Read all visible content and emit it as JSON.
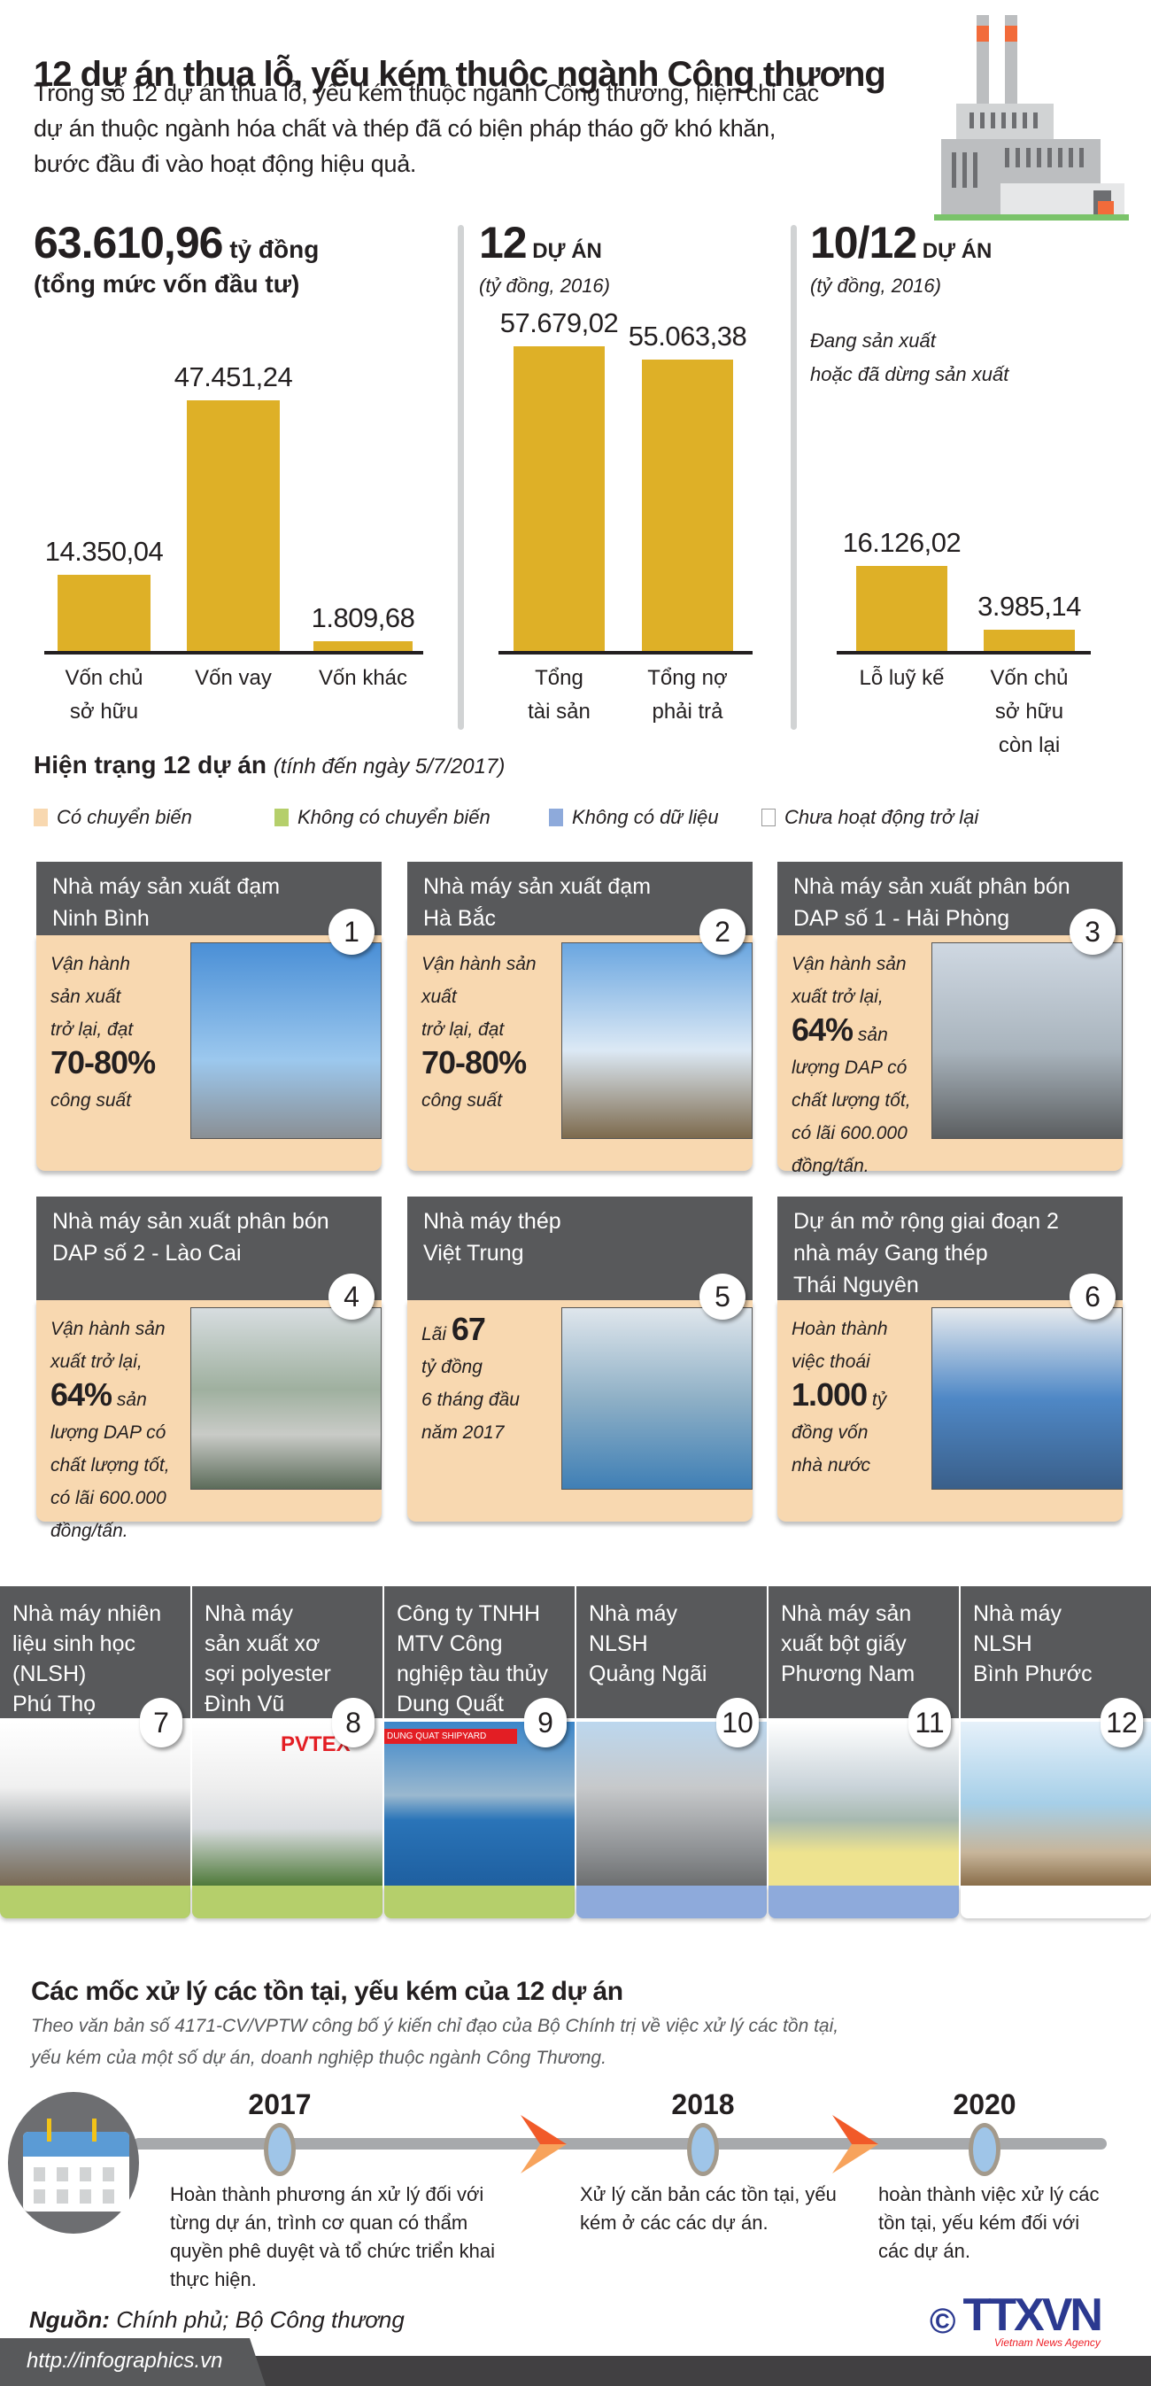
{
  "header": {
    "title": "12 dự án thua lỗ, yếu kém thuộc ngành Công thương",
    "intro": [
      "Trong số 12 dự án thua lỗ, yếu kém thuộc ngành Công thương, hiện chỉ các",
      "dự án thuộc ngành hóa chất và thép đã có biện pháp tháo gỡ khó khăn,",
      "bước đầu đi vào hoạt động hiệu quả."
    ]
  },
  "chart_data": [
    {
      "type": "bar",
      "title": "63.610,96",
      "title_unit": "tỷ đồng",
      "subtitle": "(tổng mức vốn đầu tư)",
      "categories": [
        "Vốn chủ sở hữu",
        "Vốn vay",
        "Vốn khác"
      ],
      "labels": [
        "14.350,04",
        "47.451,24",
        "1.809,68"
      ],
      "values": [
        14350.04,
        47451.24,
        1809.68
      ]
    },
    {
      "type": "bar",
      "title": "12",
      "title_unit": "DỰ ÁN",
      "subtitle": "(tỷ đồng, 2016)",
      "categories": [
        "Tổng tài sản",
        "Tổng nợ phải trả"
      ],
      "labels": [
        "57.679,02",
        "55.063,38"
      ],
      "values": [
        57679.02,
        55063.38
      ]
    },
    {
      "type": "bar",
      "title": "10/12",
      "title_unit": "DỰ ÁN",
      "subtitle": "(tỷ đồng, 2016)",
      "note": [
        "Đang sản xuất",
        "hoặc đã dừng sản xuất"
      ],
      "categories": [
        "Lỗ luỹ kế",
        "Vốn chủ sở hữu còn lại"
      ],
      "labels": [
        "16.126,02",
        "3.985,14"
      ],
      "values": [
        16126.02,
        3985.14
      ]
    }
  ],
  "status": {
    "heading": "Hiện trạng 12 dự án",
    "date": "(tính đến ngày 5/7/2017)",
    "legend": [
      {
        "label": "Có chuyển biến",
        "color": "#f8d8b0"
      },
      {
        "label": "Không có chuyển biến",
        "color": "#b5cf6b"
      },
      {
        "label": "Không có dữ liệu",
        "color": "#8eaadb"
      },
      {
        "label": "Chưa hoạt động trở lại",
        "color": "#ffffff"
      }
    ],
    "cards": [
      {
        "num": "1",
        "name": [
          "Nhà máy sản xuất đạm",
          "Ninh Bình"
        ],
        "body": [
          [
            [
              "Vận hành",
              0
            ]
          ],
          [
            [
              "sản xuất",
              0
            ]
          ],
          [
            [
              "trở lại, đạt",
              0
            ]
          ],
          [
            [
              "70-80%",
              1
            ]
          ],
          [
            [
              "công suất",
              0
            ]
          ]
        ]
      },
      {
        "num": "2",
        "name": [
          "Nhà máy sản xuất đạm",
          "Hà Bắc"
        ],
        "body": [
          [
            [
              "Vận hành sản",
              0
            ]
          ],
          [
            [
              "xuất",
              0
            ]
          ],
          [
            [
              "trở lại, đạt",
              0
            ]
          ],
          [
            [
              "70-80%",
              1
            ]
          ],
          [
            [
              "công suất",
              0
            ]
          ]
        ]
      },
      {
        "num": "3",
        "name": [
          "Nhà máy sản xuất phân bón",
          "DAP số 1 - Hải Phòng"
        ],
        "body": [
          [
            [
              "Vận hành sản",
              0
            ]
          ],
          [
            [
              "xuất trở lại,",
              0
            ]
          ],
          [
            [
              "64%",
              1
            ],
            [
              " sản",
              0
            ]
          ],
          [
            [
              "lượng DAP có",
              0
            ]
          ],
          [
            [
              "chất lượng tốt,",
              0
            ]
          ],
          [
            [
              "có lãi 600.000",
              0
            ]
          ],
          [
            [
              "đồng/tấn.",
              0
            ]
          ]
        ]
      },
      {
        "num": "4",
        "name": [
          "Nhà máy sản xuất phân bón",
          "DAP số 2 - Lào Cai"
        ],
        "body": [
          [
            [
              "Vận hành sản",
              0
            ]
          ],
          [
            [
              "xuất trở lại,",
              0
            ]
          ],
          [
            [
              "64%",
              1
            ],
            [
              " sản",
              0
            ]
          ],
          [
            [
              "lượng DAP có",
              0
            ]
          ],
          [
            [
              "chất lượng tốt,",
              0
            ]
          ],
          [
            [
              "có lãi 600.000",
              0
            ]
          ],
          [
            [
              "đồng/tấn.",
              0
            ]
          ]
        ]
      },
      {
        "num": "5",
        "name": [
          "Nhà máy thép",
          "Việt Trung"
        ],
        "body": [
          [
            [
              "Lãi ",
              0
            ],
            [
              "67",
              1
            ]
          ],
          [
            [
              "tỷ đồng",
              0
            ]
          ],
          [
            [
              "6 tháng đầu",
              0
            ]
          ],
          [
            [
              "năm 2017",
              0
            ]
          ]
        ]
      },
      {
        "num": "6",
        "name": [
          "Dự án mở rộng giai đoạn 2",
          "nhà máy Gang thép",
          "Thái Nguyên"
        ],
        "body": [
          [
            [
              "Hoàn thành",
              0
            ]
          ],
          [
            [
              "việc thoái",
              0
            ]
          ],
          [
            [
              "1.000",
              1
            ],
            [
              " tỷ",
              0
            ]
          ],
          [
            [
              "đồng vốn",
              0
            ]
          ],
          [
            [
              "nhà nước",
              0
            ]
          ]
        ]
      }
    ],
    "columns": [
      {
        "num": "7",
        "name": [
          "Nhà máy nhiên",
          "liệu sinh học",
          "(NLSH)",
          "Phú Thọ"
        ],
        "status": "#b5cf6b"
      },
      {
        "num": "8",
        "name": [
          "Nhà máy",
          "sản xuất xơ",
          "sợi polyester",
          "Đình Vũ"
        ],
        "status": "#b5cf6b",
        "sign": "PVTEX"
      },
      {
        "num": "9",
        "name": [
          "Công ty TNHH",
          "MTV Công",
          "nghiệp tàu thủy",
          "Dung Quất"
        ],
        "status": "#b5cf6b",
        "sign": "DUNG QUAT SHIPYARD"
      },
      {
        "num": "10",
        "name": [
          "Nhà máy",
          "NLSH",
          "Quảng Ngãi"
        ],
        "status": "#8eaadb"
      },
      {
        "num": "11",
        "name": [
          "Nhà máy sản",
          "xuất bột giấy",
          "Phương Nam"
        ],
        "status": "#8eaadb"
      },
      {
        "num": "12",
        "name": [
          "Nhà máy",
          "NLSH",
          "Bình Phước"
        ],
        "status": "#ffffff"
      }
    ]
  },
  "timeline": {
    "heading": "Các mốc xử lý các tồn tại, yếu kém của 12 dự án",
    "sub": [
      "Theo văn bản số 4171-CV/VPTW công bố ý kiến chỉ đạo của Bộ Chính trị về việc xử lý các tồn tại,",
      "yếu kém của một số dự án, doanh nghiệp thuộc ngành Công Thương."
    ],
    "items": [
      {
        "year": "2017",
        "text": "Hoàn thành phương án xử lý đối với từng dự án, trình cơ quan có thẩm quyền phê duyệt và tổ chức triển khai thực hiện."
      },
      {
        "year": "2018",
        "text": "Xử lý căn bản các tồn tại, yếu kém ở các các dự án."
      },
      {
        "year": "2020",
        "text": "hoàn thành việc xử lý các tồn tại, yếu kém đối với các dự án."
      }
    ]
  },
  "footer": {
    "source_label": "Nguồn:",
    "source": "Chính phủ; Bộ Công thương",
    "url": "http://infographics.vn",
    "logo": "TTXVN",
    "logo_sub": "Vietnam News Agency",
    "copyright": "©"
  }
}
